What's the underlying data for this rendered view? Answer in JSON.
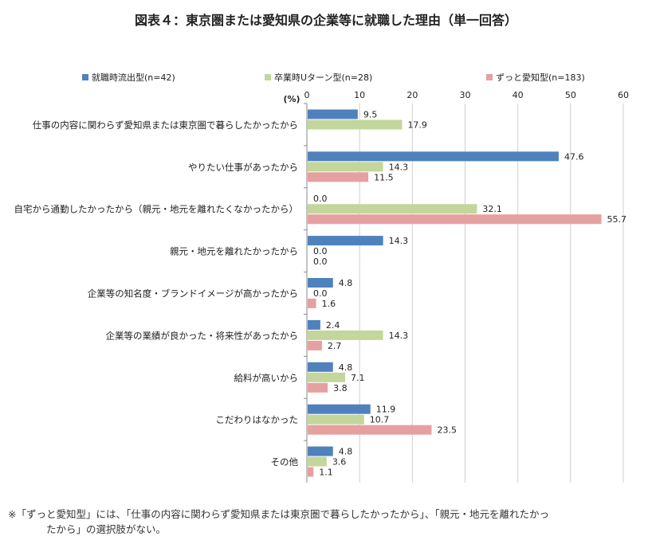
{
  "chart_data": {
    "type": "bar",
    "orientation": "horizontal",
    "title": "図表４：東京圏または愛知県の企業等に就職した理由（単一回答）",
    "unit_label": "(%)",
    "xlim": [
      0,
      60
    ],
    "ticks": [
      0,
      10,
      20,
      30,
      40,
      50,
      60
    ],
    "grid": true,
    "legend_position": "top",
    "categories": [
      "仕事の内容に関わらず愛知県または東京圏で暮らしたかったから",
      "やりたい仕事があったから",
      "自宅から通勤したかったから（親元・地元を離れたくなかったから）",
      "親元・地元を離れたかったから",
      "企業等の知名度・ブランドイメージが高かったから",
      "企業等の業績が良かった・将来性があったから",
      "給料が高いから",
      "こだわりはなかった",
      "その他"
    ],
    "series": [
      {
        "name": "就職時流出型(n=42)",
        "color": "#4f81bd",
        "values": [
          9.5,
          47.6,
          0.0,
          14.3,
          4.8,
          2.4,
          4.8,
          11.9,
          4.8
        ]
      },
      {
        "name": "卒業時Uターン型(n=28)",
        "color": "#c3d69b",
        "values": [
          17.9,
          14.3,
          32.1,
          0.0,
          0.0,
          14.3,
          7.1,
          10.7,
          3.6
        ]
      },
      {
        "name": "ずっと愛知型(n=183)",
        "color": "#e6a0a0",
        "values": [
          null,
          11.5,
          55.7,
          0.0,
          1.6,
          2.7,
          3.8,
          23.5,
          1.1
        ]
      }
    ]
  },
  "footnote": {
    "line1": "※「ずっと愛知型」には、「仕事の内容に関わらず愛知県または東京圏で暮らしたかったから」、「親元・地元を離れたかっ",
    "line2": "たから」の選択肢がない。"
  }
}
